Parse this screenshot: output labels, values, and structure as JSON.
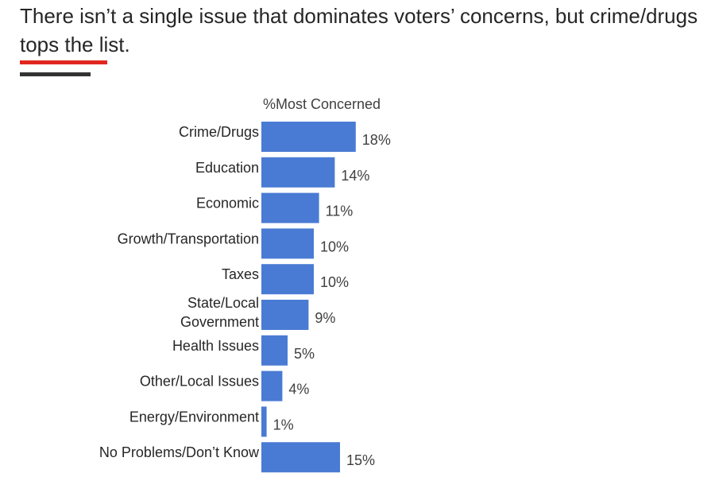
{
  "header": {
    "title": "There isn’t a single issue that dominates voters’ concerns, but crime/drugs tops the list.",
    "accent_colors": {
      "red": "#e0271f",
      "dark": "#333333"
    }
  },
  "chart_data": {
    "type": "bar",
    "orientation": "horizontal",
    "title": "",
    "series_title": "%Most Concerned",
    "categories": [
      [
        "Crime/Drugs"
      ],
      [
        "Education"
      ],
      [
        "Economic"
      ],
      [
        "Growth/Transportation"
      ],
      [
        "Taxes"
      ],
      [
        "State/Local",
        "Government"
      ],
      [
        "Health Issues"
      ],
      [
        "Other/Local Issues"
      ],
      [
        "Energy/Environment"
      ],
      [
        "No Problems/Don’t Know"
      ]
    ],
    "series": [
      {
        "name": "%Most Concerned",
        "values": [
          18,
          14,
          11,
          10,
          10,
          9,
          5,
          4,
          1,
          15
        ],
        "color": "#4a7bd4"
      }
    ],
    "data_labels": [
      "18%",
      "14%",
      "11%",
      "10%",
      "10%",
      "9%",
      "5%",
      "4%",
      "1%",
      "15%"
    ],
    "xlabel": "",
    "ylabel": "",
    "xlim": [
      0,
      20
    ],
    "grid": false,
    "legend": "none"
  }
}
